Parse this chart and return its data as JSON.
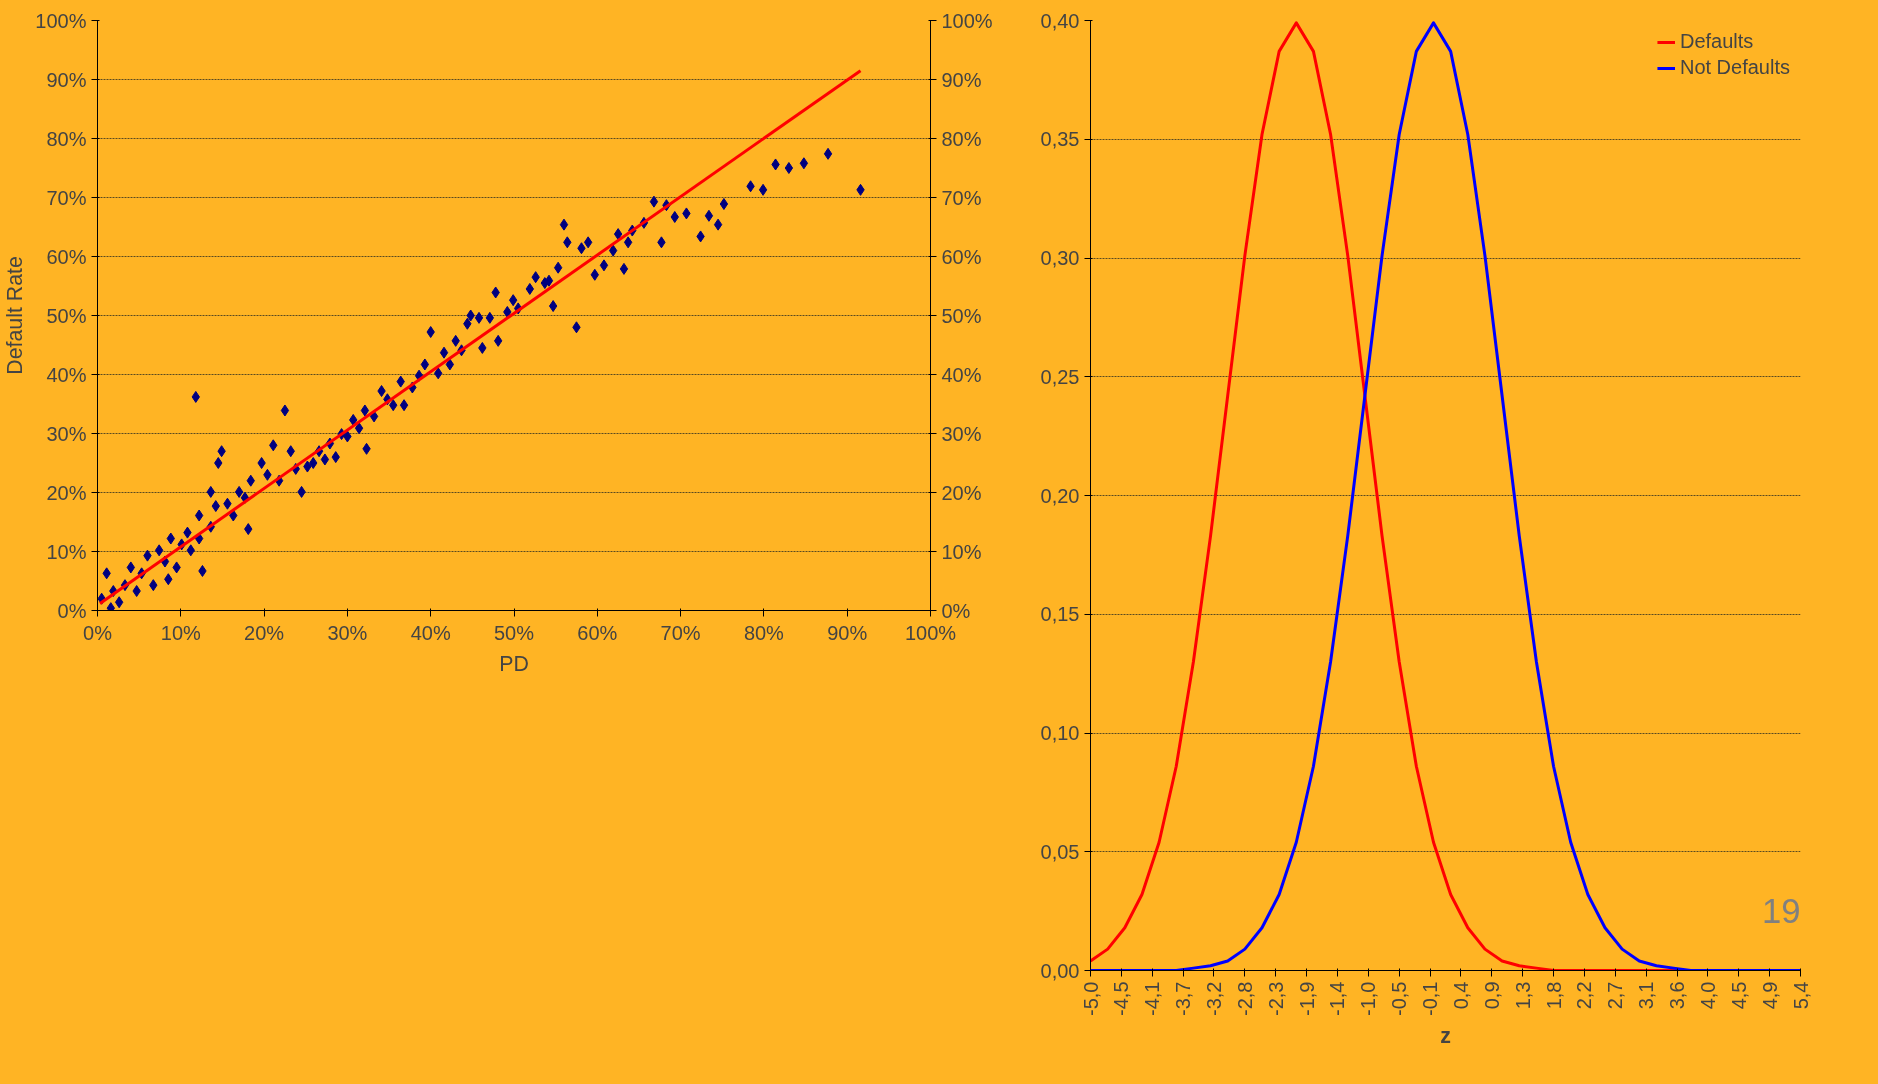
{
  "chart_data": [
    {
      "type": "scatter",
      "xlabel": "PD",
      "ylabel": "Default Rate",
      "grid": "y",
      "legend": false,
      "xlim": [
        0,
        100
      ],
      "ylim": [
        0,
        100
      ],
      "y2lim": [
        0,
        100
      ],
      "xticks": [
        {
          "value": 0,
          "label": "0%"
        },
        {
          "value": 10,
          "label": "10%"
        },
        {
          "value": 20,
          "label": "20%"
        },
        {
          "value": 30,
          "label": "30%"
        },
        {
          "value": 40,
          "label": "40%"
        },
        {
          "value": 50,
          "label": "50%"
        },
        {
          "value": 60,
          "label": "60%"
        },
        {
          "value": 70,
          "label": "70%"
        },
        {
          "value": 80,
          "label": "80%"
        },
        {
          "value": 90,
          "label": "90%"
        },
        {
          "value": 100,
          "label": "100%"
        }
      ],
      "yticks": [
        {
          "value": 0,
          "label": "0%"
        },
        {
          "value": 10,
          "label": "10%"
        },
        {
          "value": 20,
          "label": "20%"
        },
        {
          "value": 30,
          "label": "30%"
        },
        {
          "value": 40,
          "label": "40%"
        },
        {
          "value": 50,
          "label": "50%"
        },
        {
          "value": 60,
          "label": "60%"
        },
        {
          "value": 70,
          "label": "70%"
        },
        {
          "value": 80,
          "label": "80%"
        },
        {
          "value": 90,
          "label": "90%"
        },
        {
          "value": 100,
          "label": "100%"
        }
      ],
      "y2ticks": [
        {
          "value": 0,
          "label": "0%"
        },
        {
          "value": 10,
          "label": "10%"
        },
        {
          "value": 20,
          "label": "20%"
        },
        {
          "value": 30,
          "label": "30%"
        },
        {
          "value": 40,
          "label": "40%"
        },
        {
          "value": 50,
          "label": "50%"
        },
        {
          "value": 60,
          "label": "60%"
        },
        {
          "value": 70,
          "label": "70%"
        },
        {
          "value": 80,
          "label": "80%"
        },
        {
          "value": 90,
          "label": "90%"
        },
        {
          "value": 100,
          "label": "100%"
        }
      ],
      "series": [
        {
          "type": "scatter",
          "marker": "diamond",
          "color": "#000080",
          "x": [
            91.6,
            87.7,
            84.8,
            83,
            81.4,
            78.4,
            79.9,
            75.2,
            74.5,
            72.4,
            73.4,
            70.7,
            69.3,
            68.3,
            66.8,
            67.7,
            65.6,
            64.2,
            63.7,
            63.2,
            61.9,
            60.8,
            59.7,
            58.9,
            56,
            56.4,
            57.5,
            55.3,
            54.7,
            53.7,
            51.9,
            49.9,
            49.2,
            47.8,
            47.1,
            45.8,
            44.4,
            48.1,
            46.2,
            43,
            41.6,
            40,
            40.9,
            39.3,
            37.8,
            36.4,
            35.5,
            34.1,
            33.2,
            32.1,
            32.3,
            30.7,
            29.3,
            27.9,
            28.6,
            26.6,
            25.2,
            24.5,
            23.2,
            22.5,
            21.1,
            19.7,
            18.4,
            18.1,
            17,
            14.9,
            14.5,
            11.8,
            13.6,
            12.2,
            12.6,
            10.8,
            10.1,
            8.8,
            8.1,
            7.4,
            6,
            5.3,
            4,
            3.3,
            1.9,
            1.1,
            0.5,
            1.6,
            2.6,
            4.7,
            6.7,
            8.5,
            9.5,
            11.2,
            12.2,
            13.6,
            14.2,
            15.6,
            16.3,
            17.7,
            20.4,
            21.8,
            23.8,
            25.9,
            27.3,
            30,
            31.4,
            34.8,
            36.8,
            38.6,
            42.3,
            43.7,
            44.8,
            50.5,
            52.6,
            54.2,
            58.1,
            62.5
          ],
          "values": [
            71.3,
            77.4,
            75.8,
            75,
            75.6,
            71.9,
            71.3,
            68.9,
            65.4,
            63.4,
            66.9,
            67.3,
            66.7,
            68.7,
            69.3,
            62.4,
            65.7,
            64.4,
            62.4,
            57.9,
            61,
            58.5,
            56.9,
            62.4,
            65.4,
            62.4,
            48,
            58.1,
            51.6,
            55.5,
            54.5,
            52.6,
            50.6,
            53.9,
            49.6,
            49.6,
            48.6,
            45.7,
            44.5,
            45.7,
            43.7,
            47.2,
            40.2,
            41.7,
            37.8,
            38.8,
            34.8,
            37.2,
            32.9,
            33.9,
            27.4,
            32.3,
            29.9,
            28.3,
            26,
            27,
            24.4,
            20.1,
            27,
            33.9,
            28,
            25,
            22,
            13.8,
            20.1,
            27,
            25,
            36.2,
            20.1,
            16.1,
            6.7,
            13.2,
            11.2,
            12.2,
            8.3,
            10.2,
            9.3,
            6.3,
            7.3,
            4.3,
            3.3,
            6.3,
            2,
            0.4,
            1.4,
            3.3,
            4.3,
            5.3,
            7.3,
            10.2,
            12.2,
            14.2,
            17.7,
            18.1,
            16.1,
            19.1,
            23,
            22,
            24,
            25,
            25.6,
            29.5,
            30.9,
            35.8,
            34.8,
            39.8,
            41.7,
            44.1,
            50,
            51.2,
            56.5,
            55.9,
            61.4,
            63.8
          ]
        },
        {
          "type": "line",
          "color": "#ff0000",
          "x": [
            0.3,
            91.6
          ],
          "values": [
            1.2,
            91.5
          ]
        }
      ]
    },
    {
      "type": "line",
      "xlabel": "z",
      "grid": "y",
      "legend": "top right",
      "line_style": "solid",
      "marker": "none",
      "xlim": [
        -5,
        5.35
      ],
      "ylim": [
        0,
        0.4
      ],
      "xticks": [
        {
          "value": -5,
          "label": "-5,0"
        },
        {
          "value": -4.55,
          "label": "-4,5"
        },
        {
          "value": -4.1,
          "label": "-4,1"
        },
        {
          "value": -3.65,
          "label": "-3,7"
        },
        {
          "value": -3.2,
          "label": "-3,2"
        },
        {
          "value": -2.75,
          "label": "-2,8"
        },
        {
          "value": -2.3,
          "label": "-2,3"
        },
        {
          "value": -1.85,
          "label": "-1,9"
        },
        {
          "value": -1.4,
          "label": "-1,4"
        },
        {
          "value": -0.95,
          "label": "-1,0"
        },
        {
          "value": -0.5,
          "label": "-0,5"
        },
        {
          "value": -0.05,
          "label": "-0,1"
        },
        {
          "value": 0.4,
          "label": "0,4"
        },
        {
          "value": 0.85,
          "label": "0,9"
        },
        {
          "value": 1.3,
          "label": "1,3"
        },
        {
          "value": 1.75,
          "label": "1,8"
        },
        {
          "value": 2.2,
          "label": "2,2"
        },
        {
          "value": 2.65,
          "label": "2,7"
        },
        {
          "value": 3.1,
          "label": "3,1"
        },
        {
          "value": 3.55,
          "label": "3,6"
        },
        {
          "value": 4,
          "label": "4,0"
        },
        {
          "value": 4.45,
          "label": "4,5"
        },
        {
          "value": 4.9,
          "label": "4,9"
        },
        {
          "value": 5.35,
          "label": "5,4"
        }
      ],
      "yticks": [
        {
          "value": 0,
          "label": "0,00"
        },
        {
          "value": 0.05,
          "label": "0,05"
        },
        {
          "value": 0.1,
          "label": "0,10"
        },
        {
          "value": 0.15,
          "label": "0,15"
        },
        {
          "value": 0.2,
          "label": "0,20"
        },
        {
          "value": 0.25,
          "label": "0,25"
        },
        {
          "value": 0.3,
          "label": "0,30"
        },
        {
          "value": 0.35,
          "label": "0,35"
        },
        {
          "value": 0.4,
          "label": "0,40"
        }
      ],
      "x": [
        -5,
        -4.75,
        -4.5,
        -4.25,
        -4,
        -3.75,
        -3.5,
        -3.25,
        -3,
        -2.75,
        -2.5,
        -2.25,
        -2,
        -1.75,
        -1.5,
        -1.25,
        -1,
        -0.75,
        -0.5,
        -0.25,
        0,
        0.25,
        0.5,
        0.75,
        1,
        1.25,
        1.5,
        1.75,
        2,
        2.25,
        2.5,
        2.75,
        3,
        3.25,
        3.5,
        3.75,
        4,
        4.25,
        4.5,
        4.75,
        5,
        5.25,
        5.35
      ],
      "annotations": [
        "19"
      ],
      "series": [
        {
          "name": "Defaults",
          "color": "#ff0000",
          "values": [
            0.004,
            0.009,
            0.018,
            0.032,
            0.054,
            0.086,
            0.13,
            0.183,
            0.242,
            0.301,
            0.352,
            0.387,
            0.399,
            0.387,
            0.352,
            0.301,
            0.242,
            0.183,
            0.13,
            0.086,
            0.054,
            0.032,
            0.018,
            0.009,
            0.004,
            0.002,
            0.001,
            0,
            0,
            0,
            0,
            0,
            0,
            0,
            0,
            0,
            null,
            null,
            null,
            null,
            null,
            null,
            null
          ]
        },
        {
          "name": "Not Defaults",
          "color": "#0000ff",
          "values": [
            0,
            0,
            0,
            0,
            0,
            0,
            0.001,
            0.002,
            0.004,
            0.009,
            0.018,
            0.032,
            0.054,
            0.086,
            0.13,
            0.183,
            0.242,
            0.301,
            0.352,
            0.387,
            0.399,
            0.387,
            0.352,
            0.301,
            0.242,
            0.183,
            0.13,
            0.086,
            0.054,
            0.032,
            0.018,
            0.009,
            0.004,
            0.002,
            0.001,
            0,
            0,
            0,
            0,
            0,
            0,
            0,
            0
          ]
        }
      ]
    }
  ]
}
